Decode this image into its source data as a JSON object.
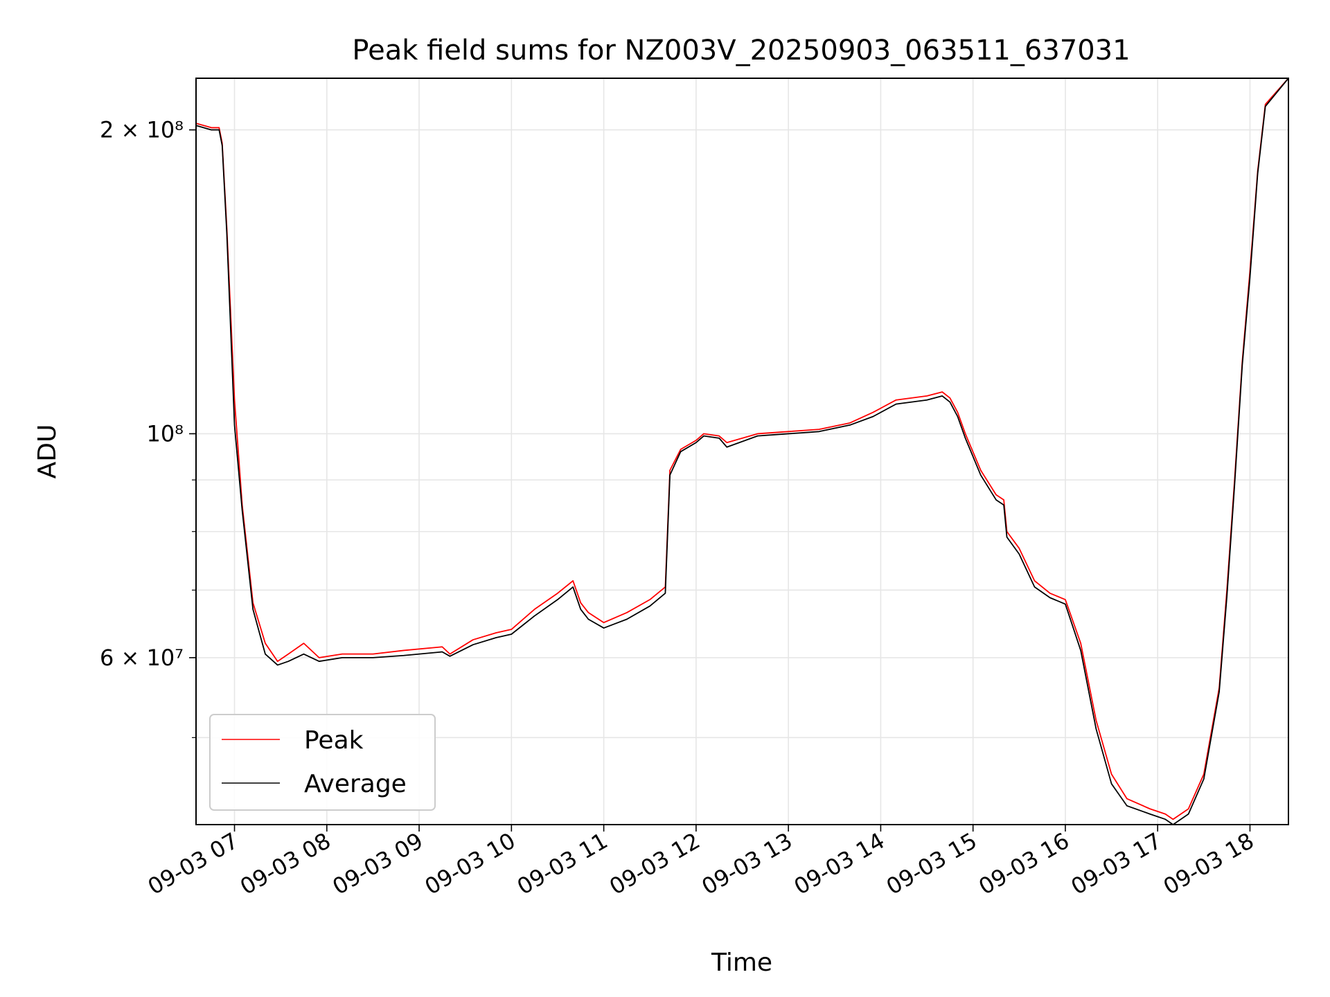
{
  "chart_data": {
    "type": "line",
    "title": "Peak field sums for NZ003V_20250903_063511_637031",
    "xlabel": "Time",
    "ylabel": "ADU",
    "x_scale": "time",
    "y_scale": "log",
    "xlim": [
      "09-03 06:35",
      "09-03 18:25"
    ],
    "ylim": [
      41000000,
      225000000
    ],
    "grid": true,
    "legend_position": "lower-left",
    "x_ticks": [
      "09-03 07",
      "09-03 08",
      "09-03 09",
      "09-03 10",
      "09-03 11",
      "09-03 12",
      "09-03 13",
      "09-03 14",
      "09-03 15",
      "09-03 16",
      "09-03 17",
      "09-03 18"
    ],
    "y_ticks": [
      "2 × 10⁸",
      "10⁸",
      "6 × 10⁷"
    ],
    "colors": {
      "Peak": "#ff0000",
      "Average": "#000000"
    },
    "series": [
      {
        "name": "Peak",
        "points": [
          [
            "09-03 06:35",
            203000000
          ],
          [
            "09-03 06:45",
            201000000
          ],
          [
            "09-03 06:50",
            201000000
          ],
          [
            "09-03 06:52",
            194000000
          ],
          [
            "09-03 06:55",
            160000000
          ],
          [
            "09-03 07:00",
            108000000
          ],
          [
            "09-03 07:05",
            85000000
          ],
          [
            "09-03 07:12",
            68000000
          ],
          [
            "09-03 07:20",
            62000000
          ],
          [
            "09-03 07:28",
            59500000
          ],
          [
            "09-03 07:35",
            60500000
          ],
          [
            "09-03 07:45",
            62000000
          ],
          [
            "09-03 07:55",
            60000000
          ],
          [
            "09-03 08:10",
            60500000
          ],
          [
            "09-03 08:30",
            60500000
          ],
          [
            "09-03 08:50",
            61000000
          ],
          [
            "09-03 09:15",
            61500000
          ],
          [
            "09-03 09:20",
            60500000
          ],
          [
            "09-03 09:35",
            62500000
          ],
          [
            "09-03 09:50",
            63500000
          ],
          [
            "09-03 10:00",
            64000000
          ],
          [
            "09-03 10:15",
            67000000
          ],
          [
            "09-03 10:30",
            69500000
          ],
          [
            "09-03 10:40",
            71500000
          ],
          [
            "09-03 10:45",
            68000000
          ],
          [
            "09-03 10:50",
            66500000
          ],
          [
            "09-03 11:00",
            65000000
          ],
          [
            "09-03 11:15",
            66500000
          ],
          [
            "09-03 11:30",
            68500000
          ],
          [
            "09-03 11:40",
            70500000
          ],
          [
            "09-03 11:43",
            92000000
          ],
          [
            "09-03 11:50",
            96500000
          ],
          [
            "09-03 12:00",
            98500000
          ],
          [
            "09-03 12:05",
            100000000
          ],
          [
            "09-03 12:15",
            99500000
          ],
          [
            "09-03 12:20",
            98000000
          ],
          [
            "09-03 12:40",
            100000000
          ],
          [
            "09-03 13:00",
            100500000
          ],
          [
            "09-03 13:20",
            101000000
          ],
          [
            "09-03 13:40",
            102500000
          ],
          [
            "09-03 13:55",
            105000000
          ],
          [
            "09-03 14:10",
            108000000
          ],
          [
            "09-03 14:30",
            109000000
          ],
          [
            "09-03 14:40",
            110000000
          ],
          [
            "09-03 14:45",
            108500000
          ],
          [
            "09-03 14:50",
            105000000
          ],
          [
            "09-03 14:55",
            100000000
          ],
          [
            "09-03 15:05",
            92000000
          ],
          [
            "09-03 15:15",
            87000000
          ],
          [
            "09-03 15:20",
            86000000
          ],
          [
            "09-03 15:22",
            80000000
          ],
          [
            "09-03 15:30",
            77000000
          ],
          [
            "09-03 15:40",
            71500000
          ],
          [
            "09-03 15:50",
            69500000
          ],
          [
            "09-03 16:00",
            68500000
          ],
          [
            "09-03 16:10",
            62000000
          ],
          [
            "09-03 16:20",
            52000000
          ],
          [
            "09-03 16:30",
            46000000
          ],
          [
            "09-03 16:40",
            43500000
          ],
          [
            "09-03 16:55",
            42500000
          ],
          [
            "09-03 17:05",
            42000000
          ],
          [
            "09-03 17:10",
            41500000
          ],
          [
            "09-03 17:20",
            42500000
          ],
          [
            "09-03 17:30",
            46000000
          ],
          [
            "09-03 17:40",
            56000000
          ],
          [
            "09-03 17:45",
            70000000
          ],
          [
            "09-03 17:50",
            90000000
          ],
          [
            "09-03 17:55",
            118000000
          ],
          [
            "09-03 18:00",
            145000000
          ],
          [
            "09-03 18:05",
            182000000
          ],
          [
            "09-03 18:10",
            212000000
          ],
          [
            "09-03 18:25",
            225000000
          ]
        ]
      },
      {
        "name": "Average",
        "points": [
          [
            "09-03 06:35",
            202000000
          ],
          [
            "09-03 06:45",
            200000000
          ],
          [
            "09-03 06:50",
            200000000
          ],
          [
            "09-03 06:52",
            193000000
          ],
          [
            "09-03 06:55",
            158000000
          ],
          [
            "09-03 07:00",
            102000000
          ],
          [
            "09-03 07:05",
            84000000
          ],
          [
            "09-03 07:12",
            67000000
          ],
          [
            "09-03 07:20",
            60500000
          ],
          [
            "09-03 07:28",
            59000000
          ],
          [
            "09-03 07:35",
            59500000
          ],
          [
            "09-03 07:45",
            60500000
          ],
          [
            "09-03 07:55",
            59500000
          ],
          [
            "09-03 08:10",
            60000000
          ],
          [
            "09-03 08:30",
            60000000
          ],
          [
            "09-03 08:50",
            60300000
          ],
          [
            "09-03 09:15",
            60800000
          ],
          [
            "09-03 09:20",
            60200000
          ],
          [
            "09-03 09:35",
            61800000
          ],
          [
            "09-03 09:50",
            62800000
          ],
          [
            "09-03 10:00",
            63300000
          ],
          [
            "09-03 10:15",
            66000000
          ],
          [
            "09-03 10:30",
            68500000
          ],
          [
            "09-03 10:40",
            70500000
          ],
          [
            "09-03 10:45",
            67000000
          ],
          [
            "09-03 10:50",
            65500000
          ],
          [
            "09-03 11:00",
            64200000
          ],
          [
            "09-03 11:15",
            65500000
          ],
          [
            "09-03 11:30",
            67500000
          ],
          [
            "09-03 11:40",
            69500000
          ],
          [
            "09-03 11:43",
            91000000
          ],
          [
            "09-03 11:50",
            96000000
          ],
          [
            "09-03 12:00",
            98000000
          ],
          [
            "09-03 12:05",
            99500000
          ],
          [
            "09-03 12:15",
            99000000
          ],
          [
            "09-03 12:20",
            97000000
          ],
          [
            "09-03 12:40",
            99500000
          ],
          [
            "09-03 13:00",
            100000000
          ],
          [
            "09-03 13:20",
            100500000
          ],
          [
            "09-03 13:40",
            102000000
          ],
          [
            "09-03 13:55",
            104000000
          ],
          [
            "09-03 14:10",
            107000000
          ],
          [
            "09-03 14:30",
            108000000
          ],
          [
            "09-03 14:40",
            109000000
          ],
          [
            "09-03 14:45",
            107500000
          ],
          [
            "09-03 14:50",
            104000000
          ],
          [
            "09-03 14:55",
            99000000
          ],
          [
            "09-03 15:05",
            91000000
          ],
          [
            "09-03 15:15",
            86000000
          ],
          [
            "09-03 15:20",
            85000000
          ],
          [
            "09-03 15:22",
            79000000
          ],
          [
            "09-03 15:30",
            76000000
          ],
          [
            "09-03 15:40",
            70500000
          ],
          [
            "09-03 15:50",
            68800000
          ],
          [
            "09-03 16:00",
            67800000
          ],
          [
            "09-03 16:10",
            61000000
          ],
          [
            "09-03 16:20",
            51000000
          ],
          [
            "09-03 16:30",
            45000000
          ],
          [
            "09-03 16:40",
            42800000
          ],
          [
            "09-03 16:55",
            42000000
          ],
          [
            "09-03 17:05",
            41500000
          ],
          [
            "09-03 17:10",
            41000000
          ],
          [
            "09-03 17:20",
            42000000
          ],
          [
            "09-03 17:30",
            45500000
          ],
          [
            "09-03 17:40",
            55500000
          ],
          [
            "09-03 17:45",
            69000000
          ],
          [
            "09-03 17:50",
            89000000
          ],
          [
            "09-03 17:55",
            117000000
          ],
          [
            "09-03 18:00",
            143000000
          ],
          [
            "09-03 18:05",
            181000000
          ],
          [
            "09-03 18:10",
            211000000
          ],
          [
            "09-03 18:25",
            225000000
          ]
        ]
      }
    ]
  }
}
